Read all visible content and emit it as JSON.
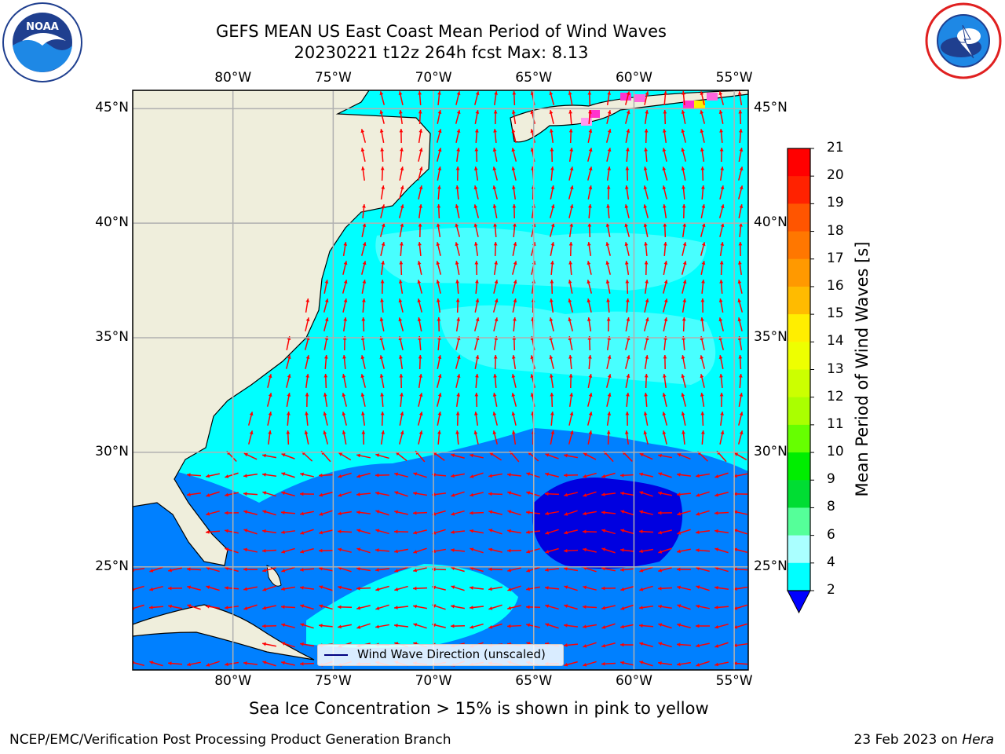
{
  "header": {
    "title_line1": "GEFS MEAN US East Coast Mean Period of Wind Waves",
    "title_line2": "20230221 t12z 264h fcst   Max: 8.13"
  },
  "logos": {
    "left_text": "NOAA",
    "left_ring_text": "NATIONAL OCEANIC AND ATMOSPHERIC ADMINISTRATION · U.S. DEPARTMENT OF COMMERCE",
    "right_ring_text": "NATIONAL WEATHER SERVICE",
    "left_icon": "noaa-logo-icon",
    "right_icon": "nws-logo-icon"
  },
  "map": {
    "lon_labels": [
      "80°W",
      "75°W",
      "70°W",
      "65°W",
      "60°W",
      "55°W"
    ],
    "lat_labels": [
      "45°N",
      "40°N",
      "35°N",
      "30°N",
      "25°N"
    ],
    "lon_values": [
      -80,
      -75,
      -70,
      -65,
      -60,
      -55
    ],
    "lat_values": [
      45,
      40,
      35,
      30,
      25
    ],
    "extent": {
      "lon_min": -85,
      "lon_max": -54.3,
      "lat_min": 20.5,
      "lat_max": 45.8
    },
    "colors": {
      "land": "#efeedc",
      "ocean_light": "#00ffff",
      "ocean_pale": "#48ffff",
      "ocean_mid": "#0080ff",
      "ocean_deep": "#0000e0",
      "arrows": "#ff0000",
      "gridlines": "#b0b0b0",
      "coast": "#000000"
    },
    "legend_label": "Wind Wave Direction (unscaled)"
  },
  "colorbar": {
    "title": "Mean Period of Wind Waves [s]",
    "levels": [
      "21",
      "20",
      "19",
      "18",
      "17",
      "16",
      "15",
      "14",
      "13",
      "12",
      "11",
      "10",
      "9",
      "8",
      "6",
      "4",
      "2"
    ],
    "colors": [
      "#ff0000",
      "#ff2200",
      "#ff5500",
      "#ff7700",
      "#ff9900",
      "#ffbb00",
      "#ffee00",
      "#eeff00",
      "#ccff00",
      "#aaff00",
      "#66ff00",
      "#00ee00",
      "#00dd33",
      "#55ff99",
      "#aaffff",
      "#48ffff",
      "#00ffff",
      "#0080ff"
    ],
    "extend_color": "#0000ff"
  },
  "caption": "Sea Ice Concentration > 15% is shown in pink to yellow",
  "footer": {
    "left": "NCEP/EMC/Verification Post Processing Product Generation Branch",
    "right_prefix": "23 Feb 2023 on ",
    "right_host": "Hera"
  }
}
